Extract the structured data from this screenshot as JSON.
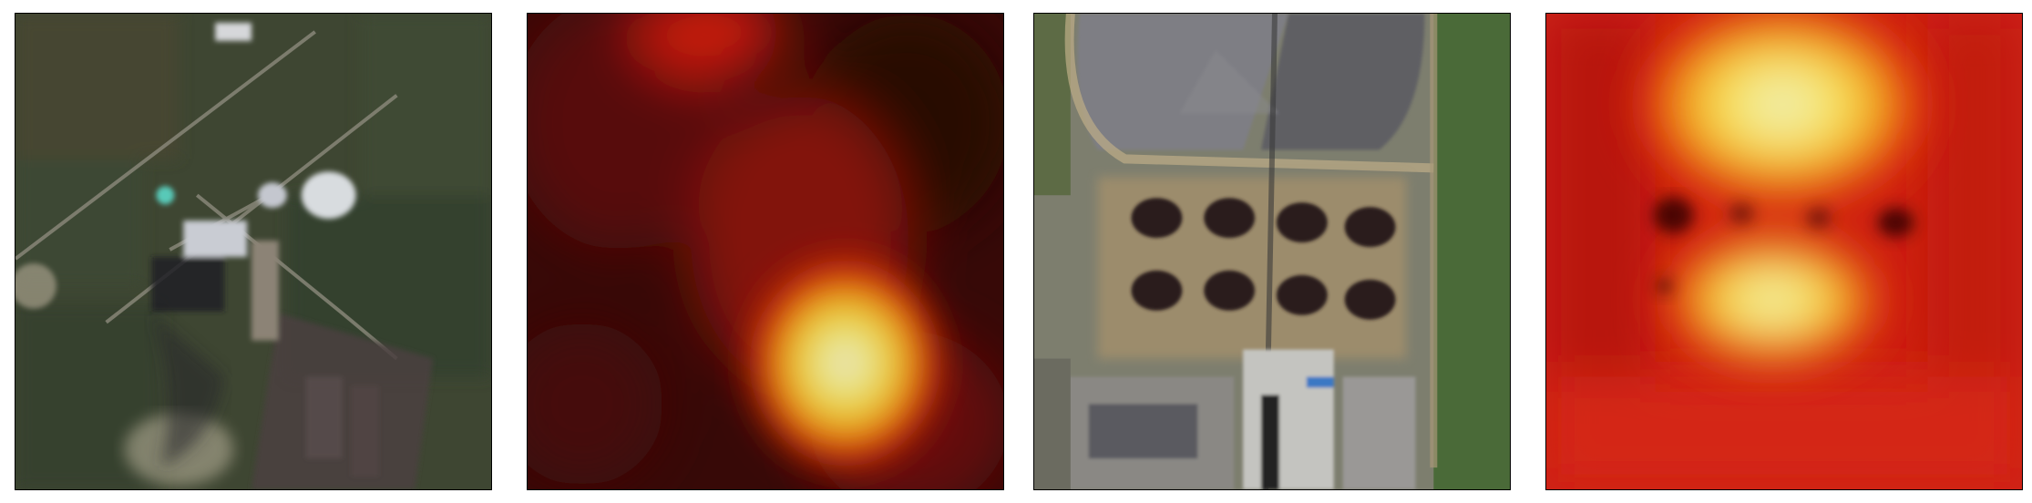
{
  "figure": {
    "panels": [
      {
        "kind": "satellite-image",
        "scene": "power-plant-with-cooling-tower"
      },
      {
        "kind": "heatmap-overlay",
        "colormap": "hot",
        "hotspot": "lower-center"
      },
      {
        "kind": "satellite-image",
        "scene": "industrial-site-with-storage-tanks"
      },
      {
        "kind": "heatmap-overlay",
        "colormap": "hot",
        "hotspot": "upper-center-and-middle"
      }
    ]
  }
}
